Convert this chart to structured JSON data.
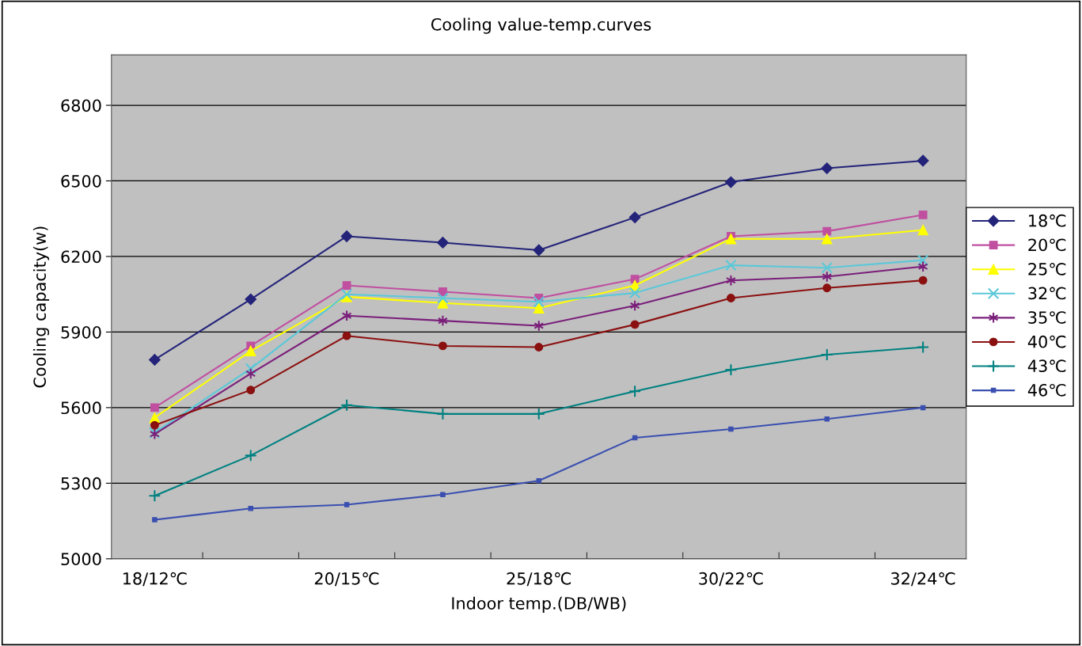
{
  "chart_data": {
    "type": "line",
    "title": "Cooling value-temp.curves",
    "xlabel": "Indoor temp.(DB/WB)",
    "ylabel": "Cooling capacity(w)",
    "categories": [
      "18/12℃",
      null,
      "20/15℃",
      null,
      "25/18℃",
      null,
      "30/22℃",
      null,
      "32/24℃"
    ],
    "ylim": [
      5000,
      7000
    ],
    "yticks": [
      5000,
      5300,
      5600,
      5900,
      6200,
      6500,
      6800
    ],
    "grid": "y",
    "legend": "right",
    "series": [
      {
        "name": "18℃",
        "color": "#23237a",
        "marker": "diamond",
        "values": [
          5790,
          6030,
          6280,
          6255,
          6225,
          6355,
          6495,
          6550,
          6580
        ]
      },
      {
        "name": "20℃",
        "color": "#c04fa0",
        "marker": "square",
        "values": [
          5600,
          5845,
          6085,
          6060,
          6035,
          6110,
          6280,
          6300,
          6365
        ]
      },
      {
        "name": "25℃",
        "color": "#ffff00",
        "marker": "triangle",
        "values": [
          5560,
          5825,
          6040,
          6015,
          5995,
          6085,
          6270,
          6270,
          6305
        ]
      },
      {
        "name": "32℃",
        "color": "#5bc8d8",
        "marker": "cross",
        "values": [
          5500,
          5755,
          6050,
          6035,
          6020,
          6055,
          6165,
          6155,
          6185
        ]
      },
      {
        "name": "35℃",
        "color": "#7a1f7a",
        "marker": "cross",
        "values": [
          5495,
          5735,
          5965,
          5945,
          5925,
          6005,
          6105,
          6120,
          6160
        ]
      },
      {
        "name": "40℃",
        "color": "#8b1010",
        "marker": "circle",
        "values": [
          5530,
          5670,
          5885,
          5845,
          5840,
          5930,
          6035,
          6075,
          6105
        ]
      },
      {
        "name": "43℃",
        "color": "#008080",
        "marker": "plus",
        "values": [
          5250,
          5410,
          5610,
          5575,
          5575,
          5665,
          5750,
          5810,
          5840
        ]
      },
      {
        "name": "46℃",
        "color": "#3a4fb0",
        "marker": "square",
        "values": [
          5155,
          5200,
          5215,
          5255,
          5310,
          5480,
          5515,
          5555,
          5600
        ]
      }
    ]
  }
}
